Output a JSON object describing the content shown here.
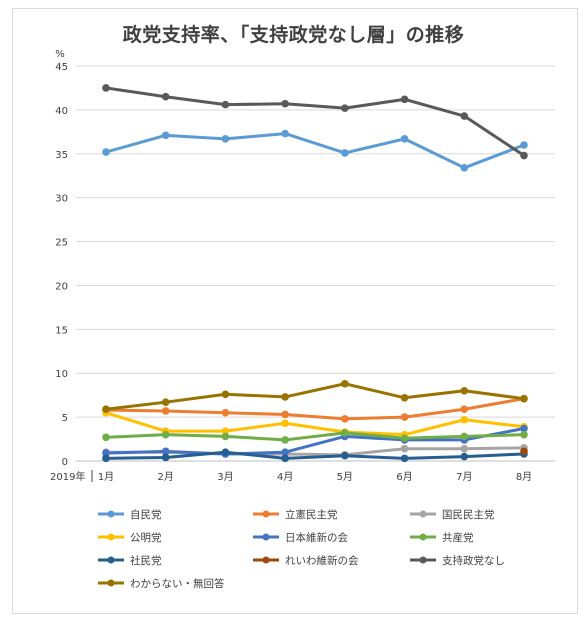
{
  "chart_data": {
    "type": "line",
    "title": "政党支持率、「支持政党なし層」の推移",
    "ylabel": "%",
    "year_label": "2019年",
    "ylim": [
      0,
      45
    ],
    "yticks": [
      "0",
      "5",
      "10",
      "15",
      "20",
      "25",
      "30",
      "35",
      "40",
      "45"
    ],
    "categories": [
      "1月",
      "2月",
      "3月",
      "4月",
      "5月",
      "6月",
      "7月",
      "8月"
    ],
    "grid": true,
    "legend_position": "bottom",
    "series": [
      {
        "name": "自民党",
        "color": "#5b9bd5",
        "values": [
          35.2,
          37.1,
          36.7,
          37.3,
          35.1,
          36.7,
          33.4,
          36.0
        ]
      },
      {
        "name": "立憲民主党",
        "color": "#ed7d31",
        "values": [
          5.8,
          5.7,
          5.5,
          5.3,
          4.8,
          5.0,
          5.9,
          7.1
        ]
      },
      {
        "name": "国民民主党",
        "color": "#a5a5a5",
        "values": [
          1.0,
          1.0,
          0.8,
          0.8,
          0.7,
          1.4,
          1.4,
          1.5
        ]
      },
      {
        "name": "公明党",
        "color": "#ffc000",
        "values": [
          5.5,
          3.4,
          3.4,
          4.3,
          3.3,
          3.0,
          4.7,
          3.9
        ]
      },
      {
        "name": "日本維新の会",
        "color": "#4472c4",
        "values": [
          0.9,
          1.1,
          0.8,
          1.0,
          2.8,
          2.4,
          2.4,
          3.7
        ]
      },
      {
        "name": "共産党",
        "color": "#70ad47",
        "values": [
          2.7,
          3.0,
          2.8,
          2.4,
          3.2,
          2.6,
          2.8,
          3.0
        ]
      },
      {
        "name": "社民党",
        "color": "#255e91",
        "values": [
          0.3,
          0.4,
          1.0,
          0.3,
          0.6,
          0.3,
          0.5,
          0.8
        ]
      },
      {
        "name": "れいわ維新の会",
        "color": "#9e480e",
        "values": [
          null,
          null,
          null,
          null,
          null,
          null,
          null,
          1.1
        ]
      },
      {
        "name": "支持政党なし",
        "color": "#595959",
        "values": [
          42.5,
          41.5,
          40.6,
          40.7,
          40.2,
          41.2,
          39.3,
          34.8
        ]
      },
      {
        "name": "わからない・無回答",
        "color": "#997300",
        "values": [
          5.9,
          6.7,
          7.6,
          7.3,
          8.8,
          7.2,
          8.0,
          7.1
        ]
      }
    ]
  }
}
